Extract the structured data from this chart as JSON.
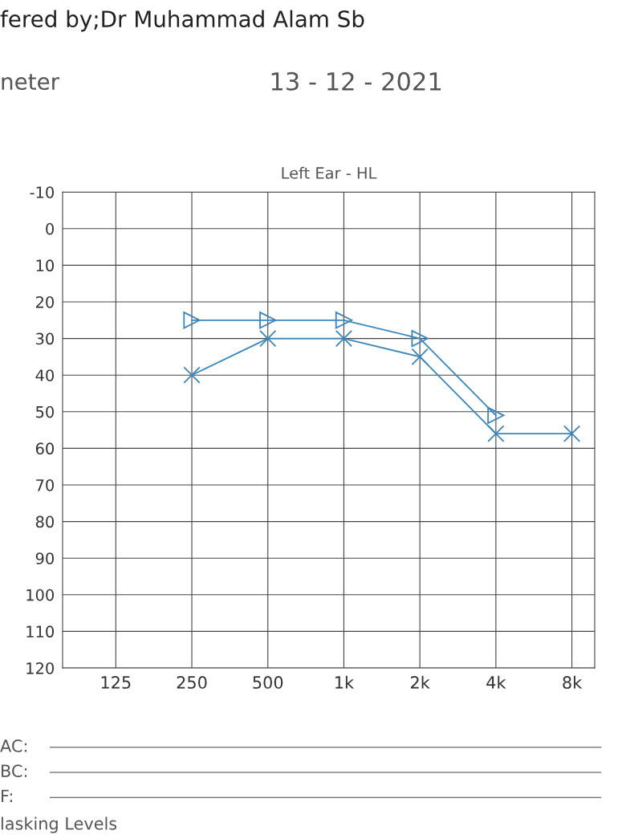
{
  "chart_data": {
    "type": "line",
    "title": "Left Ear - HL",
    "categories": [
      "125",
      "250",
      "500",
      "1k",
      "2k",
      "4k",
      "8k"
    ],
    "series": [
      {
        "color": "#3a86bd",
        "values": [
          null,
          40,
          30,
          30,
          35,
          56,
          56
        ],
        "marker": "cross"
      },
      {
        "color": "#3a86bd",
        "values": [
          null,
          25,
          25,
          25,
          30,
          51,
          null
        ],
        "marker": "triangle"
      }
    ],
    "ylim": [
      120,
      -10
    ],
    "yticks": [
      -10,
      0,
      10,
      20,
      30,
      40,
      50,
      60,
      70,
      80,
      90,
      100,
      110,
      120
    ],
    "grid": true,
    "line_style": "solid",
    "annotations": [
      "fered by;Dr Muhammad Alam Sb",
      "neter",
      "13 - 12 - 2021",
      "AC:",
      "BC:",
      "F:",
      "lasking Levels"
    ]
  }
}
